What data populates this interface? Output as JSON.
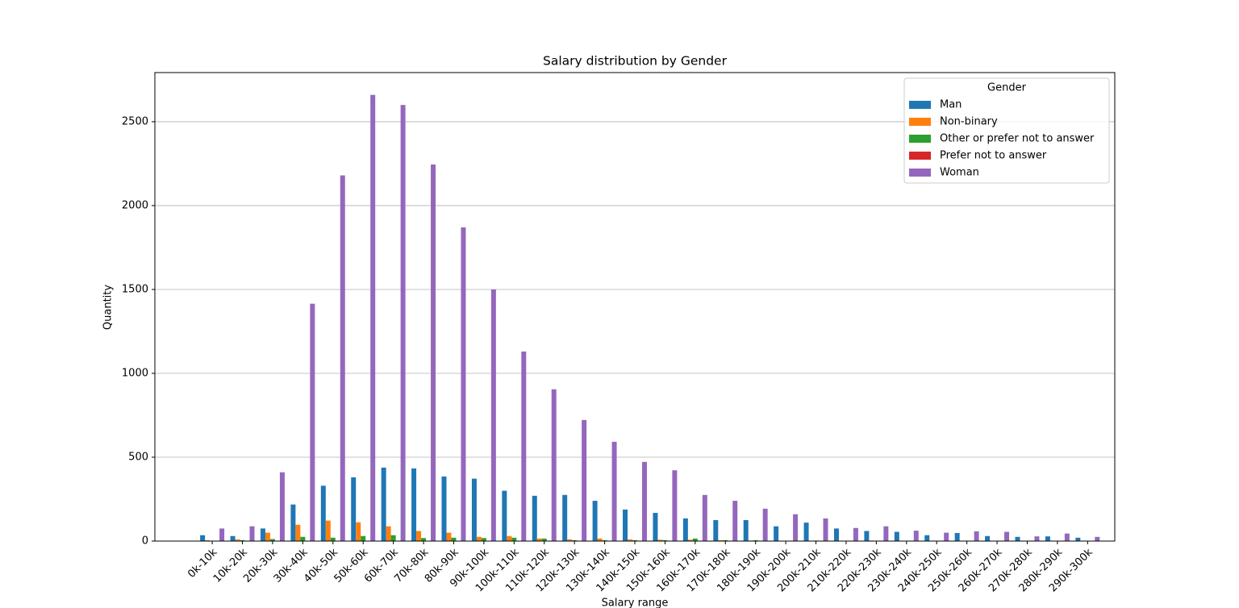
{
  "chart_data": {
    "type": "bar",
    "title": "Salary distribution by Gender",
    "x_label": "Salary range",
    "y_label": "Quantity",
    "categories": [
      "0k-10k",
      "10k-20k",
      "20k-30k",
      "30k-40k",
      "40k-50k",
      "50k-60k",
      "60k-70k",
      "70k-80k",
      "80k-90k",
      "90k-100k",
      "100k-110k",
      "110k-120k",
      "120k-130k",
      "130k-140k",
      "140k-150k",
      "150k-160k",
      "160k-170k",
      "170k-180k",
      "180k-190k",
      "190k-200k",
      "200k-210k",
      "210k-220k",
      "220k-230k",
      "230k-240k",
      "240k-250k",
      "250k-260k",
      "260k-270k",
      "270k-280k",
      "280k-290k",
      "290k-300k"
    ],
    "series": [
      {
        "name": "Man",
        "color": "#1f77b4",
        "values": [
          35,
          30,
          75,
          218,
          330,
          380,
          438,
          433,
          385,
          372,
          300,
          270,
          275,
          240,
          188,
          168,
          135,
          125,
          125,
          88,
          110,
          75,
          60,
          55,
          35,
          48,
          30,
          25,
          28,
          20
        ]
      },
      {
        "name": "Non-binary",
        "color": "#ff7f0e",
        "values": [
          5,
          10,
          50,
          97,
          122,
          112,
          88,
          60,
          50,
          25,
          30,
          15,
          10,
          15,
          10,
          8,
          8,
          5,
          3,
          2,
          2,
          1,
          3,
          1,
          2,
          1,
          1,
          0,
          1,
          0
        ]
      },
      {
        "name": "Other or prefer not to answer",
        "color": "#2ca02c",
        "values": [
          2,
          5,
          12,
          25,
          20,
          30,
          35,
          18,
          20,
          18,
          20,
          15,
          5,
          5,
          5,
          5,
          15,
          5,
          5,
          2,
          3,
          1,
          1,
          0,
          1,
          0,
          1,
          0,
          0,
          0
        ]
      },
      {
        "name": "Prefer not to answer",
        "color": "#d62728",
        "values": [
          0,
          0,
          1,
          1,
          1,
          1,
          1,
          1,
          1,
          0,
          1,
          0,
          0,
          0,
          0,
          0,
          0,
          0,
          0,
          0,
          0,
          0,
          0,
          0,
          0,
          0,
          0,
          0,
          0,
          0
        ]
      },
      {
        "name": "Woman",
        "color": "#9467bd",
        "values": [
          75,
          88,
          410,
          1415,
          2180,
          2660,
          2600,
          2245,
          1870,
          1500,
          1130,
          905,
          722,
          592,
          472,
          422,
          275,
          240,
          193,
          160,
          135,
          78,
          88,
          62,
          50,
          58,
          55,
          28,
          45,
          25
        ]
      }
    ],
    "legend_title": "Gender",
    "legend": "upper right",
    "ylim": [
      0,
      2793
    ],
    "yticks": [
      0,
      500,
      1000,
      1500,
      2000,
      2500
    ],
    "grid": true
  }
}
